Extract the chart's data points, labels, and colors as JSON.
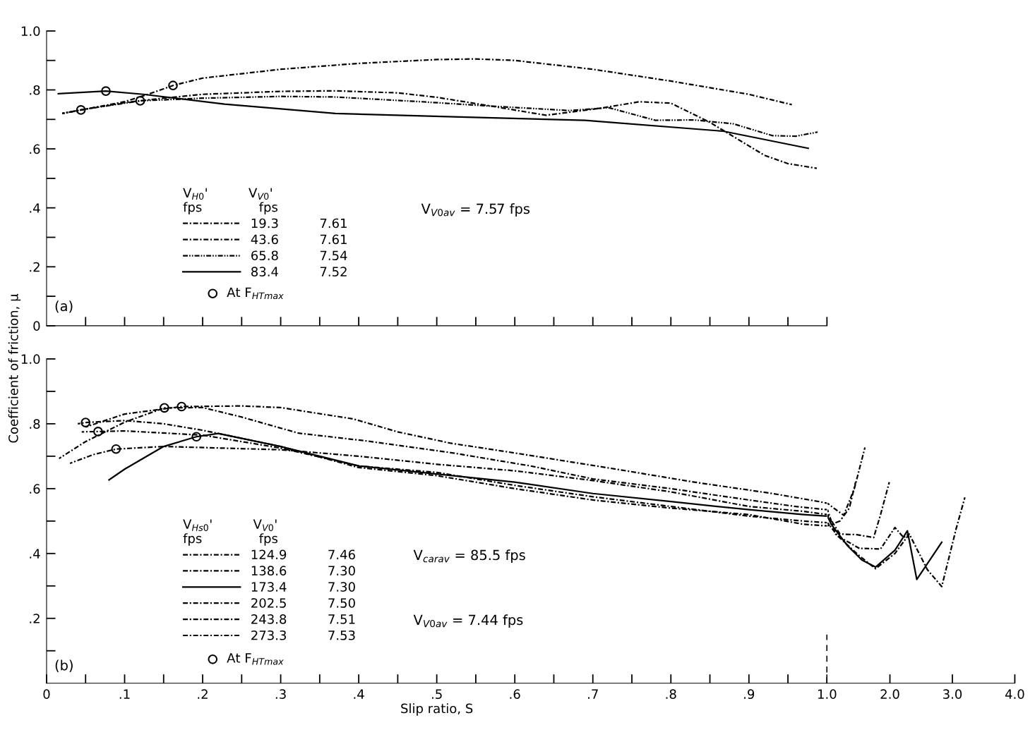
{
  "chart_data": [
    {
      "type": "line",
      "ylabel": "Coefficient of friction, μ",
      "xlim": [
        0,
        1.0
      ],
      "ylim": [
        0,
        1.0
      ],
      "xticks": [
        {
          "value": 0.05,
          "label": null
        },
        {
          "value": 0.1,
          "label": null
        },
        {
          "value": 0.15,
          "label": null
        },
        {
          "value": 0.2,
          "label": null
        },
        {
          "value": 0.25,
          "label": null
        },
        {
          "value": 0.3,
          "label": null
        },
        {
          "value": 0.35,
          "label": null
        },
        {
          "value": 0.4,
          "label": null
        },
        {
          "value": 0.45,
          "label": null
        },
        {
          "value": 0.5,
          "label": null
        },
        {
          "value": 0.55,
          "label": null
        },
        {
          "value": 0.6,
          "label": null
        },
        {
          "value": 0.65,
          "label": null
        },
        {
          "value": 0.7,
          "label": null
        },
        {
          "value": 0.75,
          "label": null
        },
        {
          "value": 0.8,
          "label": null
        },
        {
          "value": 0.85,
          "label": null
        },
        {
          "value": 0.9,
          "label": null
        },
        {
          "value": 0.95,
          "label": null
        },
        {
          "value": 1.0,
          "label": null
        }
      ],
      "yticks": [
        0,
        {
          "value": 0.1,
          "label": null
        },
        {
          "value": 0.2,
          "label": ".2"
        },
        {
          "value": 0.3,
          "label": null
        },
        {
          "value": 0.4,
          "label": ".4"
        },
        {
          "value": 0.5,
          "label": null
        },
        {
          "value": 0.6,
          "label": ".6"
        },
        {
          "value": 0.7,
          "label": null
        },
        {
          "value": 0.8,
          "label": ".8"
        },
        {
          "value": 0.9,
          "label": null
        },
        {
          "value": 1.0,
          "label": "1.0"
        }
      ],
      "tick_labels": "y",
      "grid": false,
      "legend": "bottom left",
      "legend_title": "V$_{H0}$'          V$_{V0}$'\nfps              fps",
      "annotations": [
        "(a)",
        "V$_{V0av}$ = 7.57 fps"
      ],
      "series": [
        {
          "name": "19.3          7.61",
          "color": "#000000",
          "line_style": "dashed",
          "x": [
            0.02,
            0.05,
            0.1,
            0.13,
            0.162,
            0.2,
            0.3,
            0.4,
            0.5,
            0.55,
            0.6,
            0.7,
            0.8,
            0.9,
            0.955
          ],
          "values": [
            0.72,
            0.735,
            0.76,
            0.785,
            0.815,
            0.84,
            0.87,
            0.89,
            0.903,
            0.905,
            0.9,
            0.87,
            0.83,
            0.785,
            0.75
          ]
        },
        {
          "name": "43.6          7.61",
          "color": "#000000",
          "line_style": "dashed",
          "x": [
            0.02,
            0.044,
            0.1,
            0.15,
            0.2,
            0.3,
            0.37,
            0.45,
            0.5,
            0.57,
            0.64,
            0.71,
            0.76,
            0.8,
            0.85,
            0.92,
            0.95,
            0.987
          ],
          "values": [
            0.72,
            0.732,
            0.757,
            0.772,
            0.785,
            0.795,
            0.797,
            0.79,
            0.775,
            0.745,
            0.714,
            0.738,
            0.76,
            0.755,
            0.69,
            0.578,
            0.55,
            0.534
          ]
        },
        {
          "name": "65.8          7.54",
          "color": "#000000",
          "line_style": "dotted",
          "x": [
            0.02,
            0.05,
            0.12,
            0.2,
            0.3,
            0.37,
            0.48,
            0.57,
            0.67,
            0.72,
            0.78,
            0.83,
            0.88,
            0.93,
            0.96,
            0.988
          ],
          "values": [
            0.72,
            0.735,
            0.763,
            0.772,
            0.778,
            0.776,
            0.76,
            0.745,
            0.73,
            0.74,
            0.697,
            0.698,
            0.685,
            0.645,
            0.643,
            0.657
          ]
        },
        {
          "name": "83.4          7.52",
          "color": "#000000",
          "line_style": "solid",
          "x": [
            0.015,
            0.076,
            0.124,
            0.228,
            0.37,
            0.53,
            0.69,
            0.867,
            0.976
          ],
          "values": [
            0.787,
            0.796,
            0.785,
            0.752,
            0.72,
            0.708,
            0.697,
            0.66,
            0.602
          ]
        },
        {
          "name": "At F$_{HTmax}$",
          "type": "scatter",
          "marker": "circle",
          "color": "#000000",
          "x": [
            0.044,
            0.076,
            0.12,
            0.162
          ],
          "values": [
            0.732,
            0.796,
            0.763,
            0.815
          ]
        }
      ]
    },
    {
      "type": "line",
      "xlabel": "Slip ratio, S",
      "xlim": [
        0,
        1.0
      ],
      "ylim": [
        0,
        1.0
      ],
      "xticks": [
        0,
        {
          "value": 0.05,
          "label": null
        },
        {
          "value": 0.1,
          "label": ".1"
        },
        {
          "value": 0.15,
          "label": null
        },
        {
          "value": 0.2,
          "label": ".2"
        },
        {
          "value": 0.25,
          "label": null
        },
        {
          "value": 0.3,
          "label": ".3"
        },
        {
          "value": 0.35,
          "label": null
        },
        {
          "value": 0.4,
          "label": ".4"
        },
        {
          "value": 0.45,
          "label": null
        },
        {
          "value": 0.5,
          "label": ".5"
        },
        {
          "value": 0.55,
          "label": null
        },
        {
          "value": 0.6,
          "label": ".6"
        },
        {
          "value": 0.65,
          "label": null
        },
        {
          "value": 0.7,
          "label": ".7"
        },
        {
          "value": 0.75,
          "label": null
        },
        {
          "value": 0.8,
          "label": ".8"
        },
        {
          "value": 0.85,
          "label": null
        },
        {
          "value": 0.9,
          "label": ".9"
        },
        {
          "value": 0.95,
          "label": null
        },
        {
          "value": 1.0,
          "label": "1.0"
        }
      ],
      "yticks": [
        {
          "value": 0.1,
          "label": null
        },
        {
          "value": 0.2,
          "label": ".2"
        },
        {
          "value": 0.3,
          "label": null
        },
        {
          "value": 0.4,
          "label": ".4"
        },
        {
          "value": 0.5,
          "label": null
        },
        {
          "value": 0.6,
          "label": ".6"
        },
        {
          "value": 0.7,
          "label": null
        },
        {
          "value": 0.8,
          "label": ".8"
        },
        {
          "value": 0.9,
          "label": null
        },
        {
          "value": 1.0,
          "label": "1.0"
        }
      ],
      "grid": false,
      "legend": "bottom left",
      "legend_title": "V$_{Hs0}$'          V$_{V0}$'\nfps              fps",
      "annotations": [
        "(b)",
        "V$_{carav}$ = 85.5 fps",
        "V$_{V0av}$ = 7.44 fps"
      ],
      "ref_lines": [
        {
          "axis": "x",
          "value": 1.0,
          "label": null,
          "line_style": "dashed",
          "color": "#000000"
        }
      ],
      "series": [
        {
          "name": "124.9          7.46",
          "color": "#000000",
          "line_style": "dashed",
          "x": [
            0.016,
            0.05,
            0.1,
            0.151,
            0.2,
            0.248,
            0.323,
            0.41,
            0.518,
            0.62,
            0.7,
            0.8,
            0.9,
            0.96,
            1.0
          ],
          "values": [
            0.693,
            0.745,
            0.805,
            0.849,
            0.85,
            0.822,
            0.771,
            0.747,
            0.711,
            0.67,
            0.63,
            0.6,
            0.565,
            0.545,
            0.535
          ]
        },
        {
          "name": "138.6          7.30",
          "color": "#000000",
          "line_style": "dashed",
          "x": [
            0.05,
            0.1,
            0.173,
            0.25,
            0.3,
            0.393,
            0.45,
            0.518,
            0.6,
            0.73,
            0.83,
            0.93,
            0.99,
            1.0
          ],
          "values": [
            0.79,
            0.83,
            0.853,
            0.855,
            0.85,
            0.815,
            0.775,
            0.74,
            0.71,
            0.66,
            0.62,
            0.585,
            0.56,
            0.555
          ]
        },
        {
          "name": "173.4          7.30",
          "color": "#000000",
          "line_style": "solid",
          "x": [
            0.08,
            0.1,
            0.15,
            0.192,
            0.22,
            0.3,
            0.4,
            0.5,
            0.6,
            0.7,
            0.8,
            0.9,
            0.97,
            1.0
          ],
          "values": [
            0.627,
            0.66,
            0.73,
            0.76,
            0.77,
            0.73,
            0.67,
            0.645,
            0.62,
            0.585,
            0.56,
            0.535,
            0.52,
            0.515
          ]
        },
        {
          "name": "202.5          7.50",
          "color": "#000000",
          "line_style": "dashed",
          "x": [
            0.045,
            0.066,
            0.1,
            0.2,
            0.3,
            0.4,
            0.5,
            0.6,
            0.7,
            0.8,
            0.9,
            0.97,
            1.0
          ],
          "values": [
            0.775,
            0.776,
            0.778,
            0.765,
            0.725,
            0.67,
            0.65,
            0.61,
            0.575,
            0.545,
            0.515,
            0.5,
            0.495
          ]
        },
        {
          "name": "243.8          7.51",
          "color": "#000000",
          "line_style": "dashed",
          "x": [
            0.03,
            0.06,
            0.089,
            0.15,
            0.3,
            0.4,
            0.5,
            0.6,
            0.7,
            0.8,
            0.9,
            0.97,
            1.0
          ],
          "values": [
            0.678,
            0.705,
            0.722,
            0.73,
            0.72,
            0.7,
            0.675,
            0.655,
            0.625,
            0.59,
            0.545,
            0.53,
            0.52
          ]
        },
        {
          "name": "273.3          7.53",
          "color": "#000000",
          "line_style": "dashed",
          "x": [
            0.04,
            0.05,
            0.1,
            0.15,
            0.2,
            0.3,
            0.4,
            0.5,
            0.6,
            0.7,
            0.8,
            0.9,
            0.97,
            1.0
          ],
          "values": [
            0.8,
            0.804,
            0.81,
            0.8,
            0.78,
            0.73,
            0.665,
            0.64,
            0.6,
            0.565,
            0.54,
            0.52,
            0.49,
            0.485
          ]
        },
        {
          "name": "At F$_{HTmax}$",
          "type": "scatter",
          "marker": "circle",
          "color": "#000000",
          "x": [
            0.05,
            0.066,
            0.089,
            0.151,
            0.173,
            0.192
          ],
          "values": [
            0.804,
            0.776,
            0.722,
            0.849,
            0.853,
            0.76
          ]
        }
      ]
    },
    {
      "type": "line",
      "xlim": [
        1.0,
        4.0
      ],
      "ylim": [
        0,
        1.0
      ],
      "xticks": [
        {
          "value": 2.0,
          "label": "2.0"
        },
        {
          "value": 3.0,
          "label": "3.0"
        },
        {
          "value": 4.0,
          "label": "4.0"
        }
      ],
      "tick_labels": "x",
      "grid": false,
      "series": [
        {
          "color": "#000000",
          "line_style": "dashed",
          "x": [
            1.0,
            1.13,
            1.51,
            1.77,
            2.08,
            2.31,
            2.6,
            2.83,
            3.06,
            3.2
          ],
          "values": [
            0.535,
            0.46,
            0.393,
            0.353,
            0.4,
            0.46,
            0.35,
            0.298,
            0.476,
            0.573
          ]
        },
        {
          "color": "#000000",
          "line_style": "dashed",
          "x": [
            1.0,
            1.1,
            1.26,
            1.43,
            1.6
          ],
          "values": [
            0.555,
            0.54,
            0.518,
            0.6,
            0.727
          ]
        },
        {
          "color": "#000000",
          "line_style": "solid",
          "x": [
            1.0,
            1.06,
            1.32,
            1.55,
            1.77,
            2.08,
            2.28,
            2.43,
            2.83
          ],
          "values": [
            0.515,
            0.49,
            0.424,
            0.38,
            0.358,
            0.41,
            0.47,
            0.32,
            0.435
          ]
        },
        {
          "color": "#000000",
          "line_style": "dashed",
          "x": [
            1.0,
            1.17,
            1.51,
            1.85,
            2.08,
            2.22,
            2.3
          ],
          "values": [
            0.495,
            0.453,
            0.416,
            0.414,
            0.48,
            0.449,
            0.46
          ]
        },
        {
          "color": "#000000",
          "line_style": "dashed",
          "x": [
            1.0,
            1.2,
            1.47,
            1.74,
            1.85,
            1.99
          ],
          "values": [
            0.52,
            0.46,
            0.458,
            0.449,
            0.52,
            0.62
          ]
        },
        {
          "color": "#000000",
          "line_style": "dashed",
          "x": [
            1.0,
            1.2,
            1.35,
            1.45
          ],
          "values": [
            0.485,
            0.5,
            0.54,
            0.62
          ]
        }
      ]
    }
  ]
}
